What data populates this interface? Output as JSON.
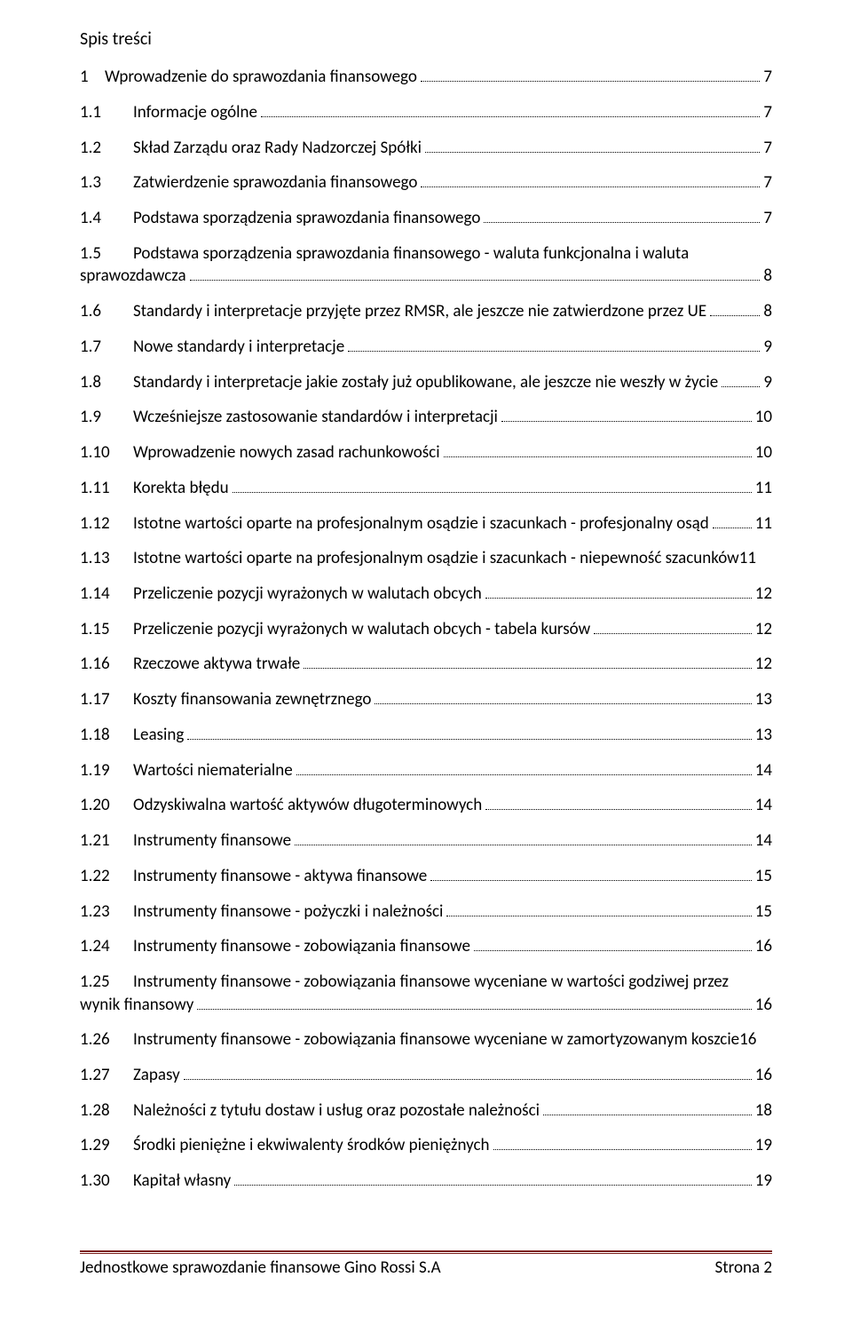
{
  "title": "Spis treści",
  "colors": {
    "text": "#000000",
    "background": "#ffffff",
    "rule": "#7b1f1a",
    "leader": "#000000"
  },
  "typography": {
    "family": "Calibri",
    "title_size_pt": 14,
    "entry_size_pt": 14,
    "footer_size_pt": 14
  },
  "toc": [
    {
      "num": "1",
      "text": "Wprowadzenie do sprawozdania finansowego",
      "page": "7",
      "level": 1
    },
    {
      "num": "1.1",
      "text": "Informacje ogólne",
      "page": "7",
      "level": 2
    },
    {
      "num": "1.2",
      "text": "Skład Zarządu oraz Rady Nadzorczej Spółki",
      "page": "7",
      "level": 2
    },
    {
      "num": "1.3",
      "text": "Zatwierdzenie sprawozdania finansowego",
      "page": "7",
      "level": 2
    },
    {
      "num": "1.4",
      "text": "Podstawa sporządzenia sprawozdania finansowego",
      "page": "7",
      "level": 2
    },
    {
      "num": "1.5",
      "text": "Podstawa sporządzenia sprawozdania finansowego - waluta funkcjonalna i waluta",
      "cont": "sprawozdawcza",
      "page": "8",
      "level": 2
    },
    {
      "num": "1.6",
      "text": "Standardy i interpretacje przyjęte przez RMSR, ale jeszcze nie zatwierdzone przez UE",
      "page": "8",
      "level": 2
    },
    {
      "num": "1.7",
      "text": "Nowe standardy i interpretacje",
      "page": "9",
      "level": 2
    },
    {
      "num": "1.8",
      "text": "Standardy i interpretacje jakie zostały już opublikowane, ale jeszcze nie weszły w życie",
      "page": "9",
      "level": 2
    },
    {
      "num": "1.9",
      "text": "Wcześniejsze zastosowanie standardów i interpretacji",
      "page": "10",
      "level": 2
    },
    {
      "num": "1.10",
      "text": "Wprowadzenie nowych zasad rachunkowości",
      "page": "10",
      "level": 2
    },
    {
      "num": "1.11",
      "text": "Korekta błędu",
      "page": "11",
      "level": 2
    },
    {
      "num": "1.12",
      "text": "Istotne wartości oparte na profesjonalnym osądzie i szacunkach - profesjonalny osąd",
      "page": "11",
      "level": 2
    },
    {
      "num": "1.13",
      "text": "Istotne wartości oparte na profesjonalnym osądzie i szacunkach - niepewność szacunków",
      "page": "11",
      "level": 2,
      "tight": true
    },
    {
      "num": "1.14",
      "text": "Przeliczenie pozycji wyrażonych w walutach obcych",
      "page": "12",
      "level": 2
    },
    {
      "num": "1.15",
      "text": "Przeliczenie pozycji wyrażonych w walutach obcych - tabela kursów",
      "page": "12",
      "level": 2
    },
    {
      "num": "1.16",
      "text": "Rzeczowe aktywa trwałe",
      "page": "12",
      "level": 2
    },
    {
      "num": "1.17",
      "text": "Koszty finansowania zewnętrznego",
      "page": "13",
      "level": 2
    },
    {
      "num": "1.18",
      "text": "Leasing",
      "page": "13",
      "level": 2
    },
    {
      "num": "1.19",
      "text": "Wartości niematerialne",
      "page": "14",
      "level": 2
    },
    {
      "num": "1.20",
      "text": "Odzyskiwalna wartość aktywów długoterminowych",
      "page": "14",
      "level": 2
    },
    {
      "num": "1.21",
      "text": "Instrumenty finansowe",
      "page": "14",
      "level": 2
    },
    {
      "num": "1.22",
      "text": "Instrumenty finansowe - aktywa finansowe",
      "page": "15",
      "level": 2
    },
    {
      "num": "1.23",
      "text": "Instrumenty finansowe - pożyczki i należności",
      "page": "15",
      "level": 2
    },
    {
      "num": "1.24",
      "text": "Instrumenty finansowe - zobowiązania finansowe",
      "page": "16",
      "level": 2
    },
    {
      "num": "1.25",
      "text": "Instrumenty finansowe - zobowiązania finansowe wyceniane w wartości godziwej przez",
      "cont": "wynik finansowy",
      "page": "16",
      "level": 2
    },
    {
      "num": "1.26",
      "text": "Instrumenty finansowe - zobowiązania finansowe wyceniane w zamortyzowanym koszcie",
      "page": "16",
      "level": 2,
      "tight": true
    },
    {
      "num": "1.27",
      "text": "Zapasy",
      "page": "16",
      "level": 2
    },
    {
      "num": "1.28",
      "text": "Należności z tytułu dostaw i usług oraz pozostałe należności",
      "page": "18",
      "level": 2
    },
    {
      "num": "1.29",
      "text": "Środki pieniężne i ekwiwalenty środków pieniężnych",
      "page": "19",
      "level": 2
    },
    {
      "num": "1.30",
      "text": "Kapitał własny",
      "page": "19",
      "level": 2
    }
  ],
  "footer": {
    "left": "Jednostkowe sprawozdanie finansowe Gino Rossi S.A",
    "right": "Strona 2"
  }
}
